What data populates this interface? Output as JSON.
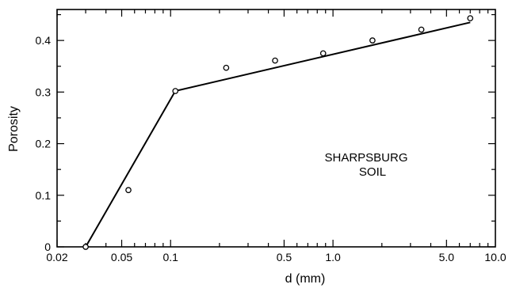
{
  "chart_data": {
    "type": "scatter",
    "xlabel": "d (mm)",
    "ylabel": "Porosity",
    "x_scale": "log",
    "xlim": [
      0.02,
      10.0
    ],
    "ylim": [
      0,
      0.46
    ],
    "x_ticks": [
      {
        "value": 0.02,
        "label": "0.02"
      },
      {
        "value": 0.05,
        "label": "0.05"
      },
      {
        "value": 0.1,
        "label": "0.1"
      },
      {
        "value": 0.5,
        "label": "0.5"
      },
      {
        "value": 1.0,
        "label": "1.0"
      },
      {
        "value": 5.0,
        "label": "5.0"
      },
      {
        "value": 10.0,
        "label": "10.0"
      }
    ],
    "y_ticks": [
      {
        "value": 0,
        "label": "0"
      },
      {
        "value": 0.1,
        "label": "0.1"
      },
      {
        "value": 0.2,
        "label": "0.2"
      },
      {
        "value": 0.3,
        "label": "0.3"
      },
      {
        "value": 0.4,
        "label": "0.4"
      }
    ],
    "points": [
      {
        "x": 0.03,
        "y": 0.0
      },
      {
        "x": 0.055,
        "y": 0.11
      },
      {
        "x": 0.107,
        "y": 0.302
      },
      {
        "x": 0.22,
        "y": 0.347
      },
      {
        "x": 0.44,
        "y": 0.361
      },
      {
        "x": 0.87,
        "y": 0.375
      },
      {
        "x": 1.75,
        "y": 0.4
      },
      {
        "x": 3.5,
        "y": 0.421
      },
      {
        "x": 7.0,
        "y": 0.443
      }
    ],
    "fit_line": [
      {
        "x": 0.03,
        "y": 0.0
      },
      {
        "x": 0.107,
        "y": 0.302
      },
      {
        "x": 7.0,
        "y": 0.435
      }
    ],
    "annotation": {
      "line1": "SHARPSBURG",
      "line2": "SOIL"
    },
    "grid": false,
    "legend": "none"
  }
}
